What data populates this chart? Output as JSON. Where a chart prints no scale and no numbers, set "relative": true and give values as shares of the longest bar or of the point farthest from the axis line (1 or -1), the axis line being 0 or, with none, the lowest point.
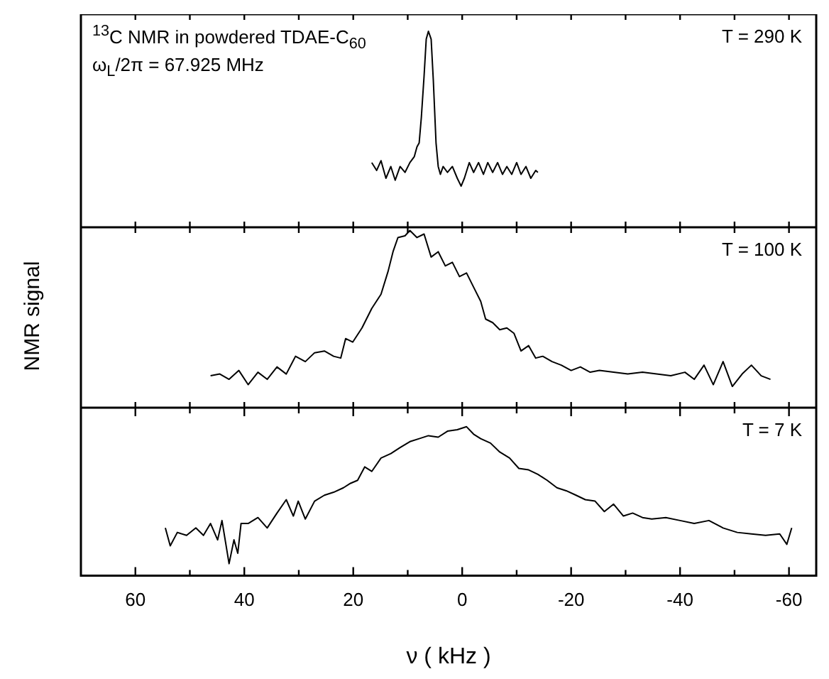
{
  "chart_data": [
    {
      "type": "line",
      "relative": true,
      "tick_labels": false,
      "xlim": [
        70,
        -65
      ],
      "xticks": [
        {
          "value": 60,
          "label": null
        },
        {
          "value": 50,
          "label": null
        },
        {
          "value": 40,
          "label": null
        },
        {
          "value": 30,
          "label": null
        },
        {
          "value": 20,
          "label": null
        },
        {
          "value": 10,
          "label": null
        },
        {
          "value": 0,
          "label": null
        },
        {
          "value": -10,
          "label": null
        },
        {
          "value": -20,
          "label": null
        },
        {
          "value": -30,
          "label": null
        },
        {
          "value": -40,
          "label": null
        },
        {
          "value": -50,
          "label": null
        },
        {
          "value": -60,
          "label": null
        }
      ],
      "annotations": [
        "$^{13}$C NMR in powdered TDAE-C$_{60}$",
        "ω$_{L}$/2π = 67.925 MHz",
        "T = 290 K"
      ],
      "series": [
        {
          "color": "#000000",
          "x": [
            16.6,
            15.7,
            14.9,
            14.0,
            13.1,
            12.3,
            11.4,
            10.5,
            9.6,
            8.8,
            8.3,
            7.9,
            7.5,
            7.0,
            6.6,
            6.2,
            5.7,
            5.3,
            4.8,
            4.4,
            4.0,
            3.5,
            2.7,
            1.8,
            0.9,
            0.2,
            -0.4,
            -1.3,
            -2.1,
            -3.0,
            -3.9,
            -4.7,
            -5.6,
            -6.5,
            -7.4,
            -8.2,
            -9.1,
            -10.0,
            -10.8,
            -11.7,
            -12.6,
            -13.5,
            -13.9
          ],
          "values": [
            0.33,
            0.29,
            0.34,
            0.25,
            0.31,
            0.24,
            0.31,
            0.28,
            0.33,
            0.36,
            0.41,
            0.43,
            0.56,
            0.77,
            0.96,
            1,
            0.96,
            0.75,
            0.43,
            0.31,
            0.27,
            0.31,
            0.28,
            0.31,
            0.25,
            0.21,
            0.25,
            0.33,
            0.28,
            0.33,
            0.27,
            0.33,
            0.28,
            0.33,
            0.27,
            0.31,
            0.27,
            0.33,
            0.27,
            0.31,
            0.25,
            0.29,
            0.28
          ]
        }
      ]
    },
    {
      "type": "line",
      "relative": true,
      "tick_labels": false,
      "ylabel": "NMR signal",
      "xlim": [
        70,
        -65
      ],
      "xticks": [
        {
          "value": 60,
          "label": null
        },
        {
          "value": 50,
          "label": null
        },
        {
          "value": 40,
          "label": null
        },
        {
          "value": 30,
          "label": null
        },
        {
          "value": 20,
          "label": null
        },
        {
          "value": 10,
          "label": null
        },
        {
          "value": 0,
          "label": null
        },
        {
          "value": -10,
          "label": null
        },
        {
          "value": -20,
          "label": null
        },
        {
          "value": -30,
          "label": null
        },
        {
          "value": -40,
          "label": null
        },
        {
          "value": -50,
          "label": null
        },
        {
          "value": -60,
          "label": null
        }
      ],
      "annotations": [
        "T = 100 K"
      ],
      "series": [
        {
          "color": "#000000",
          "x": [
            46.2,
            44.5,
            42.8,
            41.0,
            39.3,
            37.5,
            35.8,
            34.0,
            32.3,
            30.6,
            28.8,
            27.1,
            25.3,
            23.6,
            22.3,
            21.4,
            20.1,
            18.4,
            16.6,
            14.9,
            13.6,
            12.7,
            11.8,
            10.5,
            9.6,
            8.3,
            7.0,
            5.7,
            4.4,
            3.1,
            1.8,
            0.5,
            -0.8,
            -2.1,
            -3.4,
            -4.3,
            -5.6,
            -6.9,
            -8.2,
            -9.5,
            -10.8,
            -12.2,
            -13.5,
            -14.8,
            -16.5,
            -18.2,
            -20.0,
            -21.7,
            -23.5,
            -25.2,
            -27.8,
            -30.4,
            -33.1,
            -35.7,
            -38.3,
            -40.9,
            -42.6,
            -44.4,
            -46.1,
            -47.9,
            -49.6,
            -51.4,
            -53.1,
            -54.9,
            -56.6
          ],
          "values": [
            0.18,
            0.19,
            0.16,
            0.21,
            0.13,
            0.2,
            0.16,
            0.23,
            0.19,
            0.29,
            0.26,
            0.31,
            0.32,
            0.29,
            0.28,
            0.39,
            0.37,
            0.45,
            0.56,
            0.64,
            0.77,
            0.88,
            0.96,
            0.97,
            1,
            0.96,
            0.98,
            0.85,
            0.88,
            0.8,
            0.82,
            0.74,
            0.76,
            0.68,
            0.6,
            0.5,
            0.48,
            0.44,
            0.45,
            0.42,
            0.32,
            0.35,
            0.28,
            0.29,
            0.26,
            0.24,
            0.21,
            0.23,
            0.2,
            0.21,
            0.2,
            0.19,
            0.2,
            0.19,
            0.18,
            0.2,
            0.16,
            0.24,
            0.13,
            0.26,
            0.12,
            0.19,
            0.24,
            0.18,
            0.16
          ]
        }
      ]
    },
    {
      "type": "line",
      "relative": true,
      "tick_labels": "x",
      "xlabel": "ν ( kHz )",
      "xlim": [
        70,
        -65
      ],
      "xticks": [
        60,
        {
          "value": 50,
          "label": null
        },
        40,
        {
          "value": 30,
          "label": null
        },
        20,
        {
          "value": 10,
          "label": null
        },
        0,
        {
          "value": -10,
          "label": null
        },
        -20,
        {
          "value": -30,
          "label": null
        },
        -40,
        {
          "value": -50,
          "label": null
        },
        -60
      ],
      "annotations": [
        "T = 7 K"
      ],
      "series": [
        {
          "color": "#000000",
          "x": [
            54.5,
            53.6,
            52.3,
            50.6,
            48.9,
            47.5,
            46.2,
            44.9,
            44.1,
            42.8,
            41.9,
            41.2,
            40.6,
            39.3,
            37.5,
            35.8,
            34.0,
            32.3,
            31.0,
            30.1,
            28.8,
            27.1,
            25.3,
            23.6,
            21.8,
            20.5,
            19.2,
            17.9,
            16.6,
            14.9,
            13.1,
            11.4,
            9.6,
            7.9,
            6.2,
            4.4,
            2.7,
            0.9,
            -0.8,
            -2.1,
            -3.4,
            -5.2,
            -6.9,
            -8.7,
            -10.4,
            -12.2,
            -13.9,
            -15.6,
            -17.4,
            -19.1,
            -20.9,
            -22.6,
            -24.4,
            -26.1,
            -27.8,
            -29.6,
            -31.3,
            -33.1,
            -34.8,
            -37.4,
            -40.0,
            -42.6,
            -45.3,
            -47.9,
            -50.5,
            -53.1,
            -55.7,
            -58.3,
            -59.6,
            -60.5
          ],
          "values": [
            0.32,
            0.2,
            0.29,
            0.27,
            0.32,
            0.27,
            0.35,
            0.24,
            0.37,
            0.08,
            0.24,
            0.15,
            0.35,
            0.35,
            0.39,
            0.32,
            0.42,
            0.51,
            0.4,
            0.5,
            0.38,
            0.5,
            0.54,
            0.56,
            0.59,
            0.62,
            0.64,
            0.73,
            0.7,
            0.79,
            0.82,
            0.86,
            0.9,
            0.92,
            0.94,
            0.93,
            0.97,
            0.98,
            1,
            0.95,
            0.92,
            0.89,
            0.83,
            0.79,
            0.72,
            0.71,
            0.68,
            0.64,
            0.59,
            0.57,
            0.54,
            0.51,
            0.5,
            0.43,
            0.48,
            0.4,
            0.42,
            0.39,
            0.38,
            0.39,
            0.37,
            0.35,
            0.37,
            0.32,
            0.29,
            0.28,
            0.27,
            0.28,
            0.21,
            0.32
          ]
        }
      ]
    }
  ]
}
